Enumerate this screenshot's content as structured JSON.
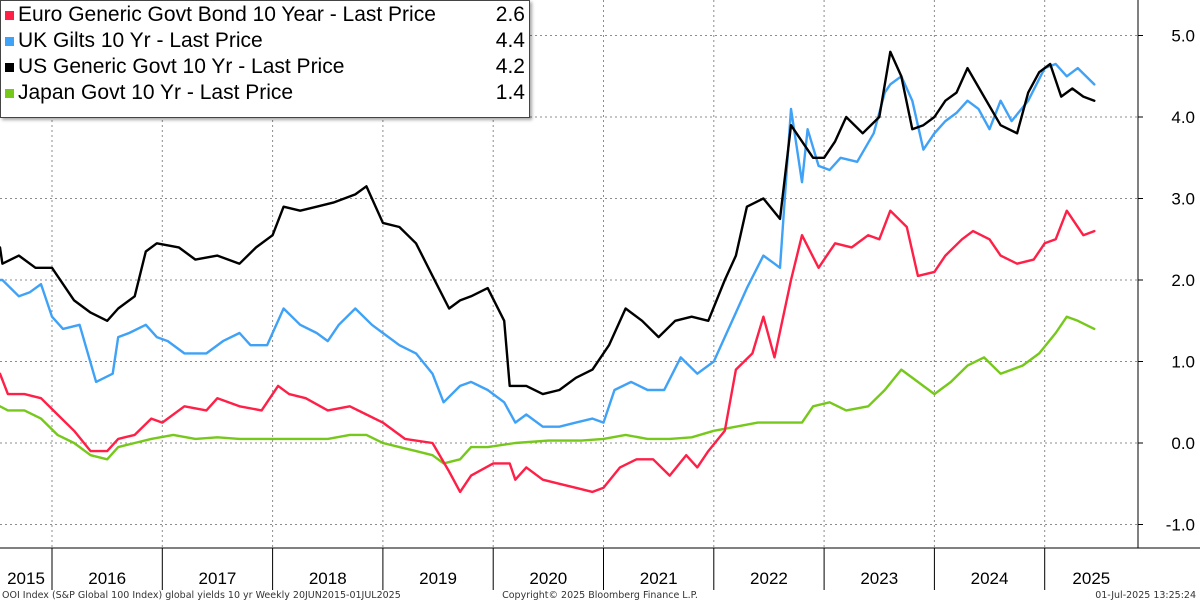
{
  "chart_data": {
    "type": "line",
    "ylim": [
      -1.2,
      5.1
    ],
    "y_ticks": [
      -1.0,
      0.0,
      1.0,
      2.0,
      3.0,
      4.0,
      5.0
    ],
    "y_tick_labels": [
      "-1.0",
      "0.0",
      "1.0",
      "2.0",
      "3.0",
      "4.0",
      "5.0"
    ],
    "y_axis_position": "right",
    "grid": true,
    "legend_placement": "top-left",
    "x_year_labels": [
      "2015",
      "2016",
      "2017",
      "2018",
      "2019",
      "2020",
      "2021",
      "2022",
      "2023",
      "2024",
      "2025"
    ],
    "x_range": [
      2015.45,
      2025.5
    ],
    "series": [
      {
        "name": "Euro Generic Govt Bond 10 Year - Last Price",
        "color": "#ff1f47",
        "last_price": "2.6",
        "x": [
          2015.45,
          2015.6,
          2015.75,
          2015.9,
          2016.05,
          2016.2,
          2016.35,
          2016.5,
          2016.6,
          2016.75,
          2016.9,
          2017.0,
          2017.2,
          2017.4,
          2017.5,
          2017.7,
          2017.9,
          2018.05,
          2018.15,
          2018.3,
          2018.5,
          2018.7,
          2018.85,
          2019.0,
          2019.2,
          2019.45,
          2019.6,
          2019.7,
          2019.8,
          2020.0,
          2020.15,
          2020.2,
          2020.3,
          2020.45,
          2020.6,
          2020.75,
          2020.9,
          2021.0,
          2021.15,
          2021.3,
          2021.45,
          2021.6,
          2021.75,
          2021.85,
          2021.95,
          2022.1,
          2022.2,
          2022.35,
          2022.45,
          2022.55,
          2022.7,
          2022.8,
          2022.95,
          2023.1,
          2023.25,
          2023.4,
          2023.5,
          2023.6,
          2023.75,
          2023.85,
          2024.0,
          2024.1,
          2024.25,
          2024.35,
          2024.5,
          2024.6,
          2024.75,
          2024.9,
          2025.0,
          2025.1,
          2025.2,
          2025.35,
          2025.45
        ],
        "y": [
          0.85,
          0.6,
          0.6,
          0.55,
          0.35,
          0.15,
          -0.1,
          -0.1,
          0.05,
          0.1,
          0.3,
          0.25,
          0.45,
          0.4,
          0.55,
          0.45,
          0.4,
          0.7,
          0.6,
          0.55,
          0.4,
          0.45,
          0.35,
          0.25,
          0.05,
          0.0,
          -0.35,
          -0.6,
          -0.4,
          -0.25,
          -0.25,
          -0.45,
          -0.3,
          -0.45,
          -0.5,
          -0.55,
          -0.6,
          -0.55,
          -0.3,
          -0.2,
          -0.2,
          -0.4,
          -0.15,
          -0.3,
          -0.1,
          0.15,
          0.9,
          1.1,
          1.55,
          1.05,
          2.0,
          2.55,
          2.15,
          2.45,
          2.4,
          2.55,
          2.5,
          2.85,
          2.65,
          2.05,
          2.1,
          2.3,
          2.5,
          2.6,
          2.5,
          2.3,
          2.2,
          2.25,
          2.45,
          2.5,
          2.85,
          2.55,
          2.6
        ]
      },
      {
        "name": "UK Gilts 10 Yr - Last Price",
        "color": "#3fa2f7",
        "last_price": "4.4",
        "x": [
          2015.45,
          2015.55,
          2015.7,
          2015.8,
          2015.9,
          2016.0,
          2016.1,
          2016.25,
          2016.4,
          2016.55,
          2016.6,
          2016.7,
          2016.85,
          2016.95,
          2017.05,
          2017.2,
          2017.4,
          2017.55,
          2017.7,
          2017.8,
          2017.95,
          2018.1,
          2018.25,
          2018.4,
          2018.5,
          2018.6,
          2018.75,
          2018.9,
          2019.0,
          2019.15,
          2019.3,
          2019.45,
          2019.55,
          2019.7,
          2019.8,
          2019.95,
          2020.1,
          2020.2,
          2020.3,
          2020.45,
          2020.6,
          2020.75,
          2020.9,
          2021.0,
          2021.1,
          2021.25,
          2021.4,
          2021.55,
          2021.7,
          2021.85,
          2022.0,
          2022.1,
          2022.2,
          2022.3,
          2022.45,
          2022.55,
          2022.6,
          2022.7,
          2022.8,
          2022.85,
          2022.95,
          2023.05,
          2023.15,
          2023.3,
          2023.45,
          2023.55,
          2023.6,
          2023.7,
          2023.8,
          2023.9,
          2024.0,
          2024.1,
          2024.2,
          2024.3,
          2024.4,
          2024.5,
          2024.6,
          2024.7,
          2024.85,
          2025.0,
          2025.1,
          2025.2,
          2025.3,
          2025.45
        ],
        "y": [
          2.0,
          2.0,
          1.8,
          1.85,
          1.95,
          1.55,
          1.4,
          1.45,
          0.75,
          0.85,
          1.3,
          1.35,
          1.45,
          1.3,
          1.25,
          1.1,
          1.1,
          1.25,
          1.35,
          1.2,
          1.2,
          1.65,
          1.45,
          1.35,
          1.25,
          1.45,
          1.65,
          1.45,
          1.35,
          1.2,
          1.1,
          0.85,
          0.5,
          0.7,
          0.75,
          0.65,
          0.5,
          0.25,
          0.35,
          0.2,
          0.2,
          0.25,
          0.3,
          0.25,
          0.65,
          0.75,
          0.65,
          0.65,
          1.05,
          0.85,
          1.0,
          1.3,
          1.6,
          1.9,
          2.3,
          2.2,
          2.15,
          4.1,
          3.2,
          3.85,
          3.4,
          3.35,
          3.5,
          3.45,
          3.8,
          4.3,
          4.4,
          4.5,
          4.2,
          3.6,
          3.8,
          3.95,
          4.05,
          4.2,
          4.1,
          3.85,
          4.2,
          3.95,
          4.2,
          4.6,
          4.65,
          4.5,
          4.6,
          4.4
        ]
      },
      {
        "name": "US Generic Govt 10 Yr - Last Price",
        "color": "#000000",
        "last_price": "4.2",
        "x": [
          2015.45,
          2015.55,
          2015.7,
          2015.85,
          2016.0,
          2016.1,
          2016.2,
          2016.35,
          2016.5,
          2016.6,
          2016.75,
          2016.85,
          2016.95,
          2017.15,
          2017.3,
          2017.5,
          2017.7,
          2017.85,
          2018.0,
          2018.1,
          2018.25,
          2018.4,
          2018.55,
          2018.75,
          2018.85,
          2019.0,
          2019.15,
          2019.3,
          2019.45,
          2019.6,
          2019.7,
          2019.8,
          2019.95,
          2020.1,
          2020.15,
          2020.3,
          2020.45,
          2020.6,
          2020.75,
          2020.9,
          2021.05,
          2021.2,
          2021.35,
          2021.5,
          2021.65,
          2021.8,
          2021.95,
          2022.1,
          2022.2,
          2022.3,
          2022.45,
          2022.6,
          2022.7,
          2022.8,
          2022.9,
          2023.0,
          2023.1,
          2023.2,
          2023.35,
          2023.5,
          2023.6,
          2023.7,
          2023.8,
          2023.9,
          2024.0,
          2024.1,
          2024.2,
          2024.3,
          2024.45,
          2024.6,
          2024.75,
          2024.85,
          2024.95,
          2025.05,
          2025.15,
          2025.25,
          2025.35,
          2025.45
        ],
        "y": [
          2.4,
          2.2,
          2.3,
          2.15,
          2.15,
          1.95,
          1.75,
          1.6,
          1.5,
          1.65,
          1.8,
          2.35,
          2.45,
          2.4,
          2.25,
          2.3,
          2.2,
          2.4,
          2.55,
          2.9,
          2.85,
          2.9,
          2.95,
          3.05,
          3.15,
          2.7,
          2.65,
          2.45,
          2.05,
          1.65,
          1.75,
          1.8,
          1.9,
          1.5,
          0.7,
          0.7,
          0.6,
          0.65,
          0.8,
          0.9,
          1.2,
          1.65,
          1.5,
          1.3,
          1.5,
          1.55,
          1.5,
          2.0,
          2.3,
          2.9,
          3.0,
          2.75,
          3.9,
          3.7,
          3.5,
          3.5,
          3.7,
          4.0,
          3.8,
          4.0,
          4.8,
          4.5,
          3.85,
          3.9,
          4.0,
          4.2,
          4.3,
          4.6,
          4.25,
          3.9,
          3.8,
          4.3,
          4.55,
          4.65,
          4.25,
          4.35,
          4.25,
          4.2
        ]
      },
      {
        "name": "Japan Govt 10 Yr - Last Price",
        "color": "#76c81b",
        "last_price": "1.4",
        "x": [
          2015.45,
          2015.6,
          2015.75,
          2015.9,
          2016.05,
          2016.2,
          2016.35,
          2016.5,
          2016.6,
          2016.75,
          2016.9,
          2017.1,
          2017.3,
          2017.5,
          2017.7,
          2017.9,
          2018.1,
          2018.3,
          2018.5,
          2018.7,
          2018.85,
          2019.0,
          2019.15,
          2019.3,
          2019.45,
          2019.55,
          2019.7,
          2019.8,
          2019.95,
          2020.2,
          2020.5,
          2020.8,
          2021.0,
          2021.2,
          2021.4,
          2021.6,
          2021.8,
          2022.0,
          2022.2,
          2022.4,
          2022.6,
          2022.8,
          2022.9,
          2023.05,
          2023.2,
          2023.4,
          2023.55,
          2023.7,
          2023.85,
          2024.0,
          2024.15,
          2024.3,
          2024.45,
          2024.6,
          2024.8,
          2024.95,
          2025.1,
          2025.2,
          2025.3,
          2025.45
        ],
        "y": [
          0.45,
          0.4,
          0.4,
          0.3,
          0.1,
          0.0,
          -0.15,
          -0.2,
          -0.05,
          0.0,
          0.05,
          0.1,
          0.05,
          0.07,
          0.05,
          0.05,
          0.05,
          0.05,
          0.05,
          0.1,
          0.1,
          0.0,
          -0.05,
          -0.1,
          -0.15,
          -0.25,
          -0.2,
          -0.05,
          -0.05,
          0.0,
          0.03,
          0.03,
          0.05,
          0.1,
          0.05,
          0.05,
          0.07,
          0.15,
          0.2,
          0.25,
          0.25,
          0.25,
          0.45,
          0.5,
          0.4,
          0.45,
          0.65,
          0.9,
          0.75,
          0.6,
          0.75,
          0.95,
          1.05,
          0.85,
          0.95,
          1.1,
          1.35,
          1.55,
          1.5,
          1.4
        ]
      }
    ]
  },
  "legend": [
    {
      "label": "Euro Generic Govt Bond 10 Year - Last Price",
      "value": "2.6",
      "color": "#ff1f47"
    },
    {
      "label": "UK Gilts 10 Yr - Last Price",
      "value": "4.4",
      "color": "#3fa2f7"
    },
    {
      "label": "US Generic Govt 10 Yr - Last Price",
      "value": "4.2",
      "color": "#000000"
    },
    {
      "label": "Japan Govt 10 Yr - Last Price",
      "value": "1.4",
      "color": "#76c81b"
    }
  ],
  "footer": {
    "left": "OOI Index (S&P Global 100 Index) global yields 10 yr  Weekly 20JUN2015-01JUL2025",
    "center": "Copyright© 2025 Bloomberg Finance L.P.",
    "right": "01-Jul-2025 13:25:24"
  }
}
